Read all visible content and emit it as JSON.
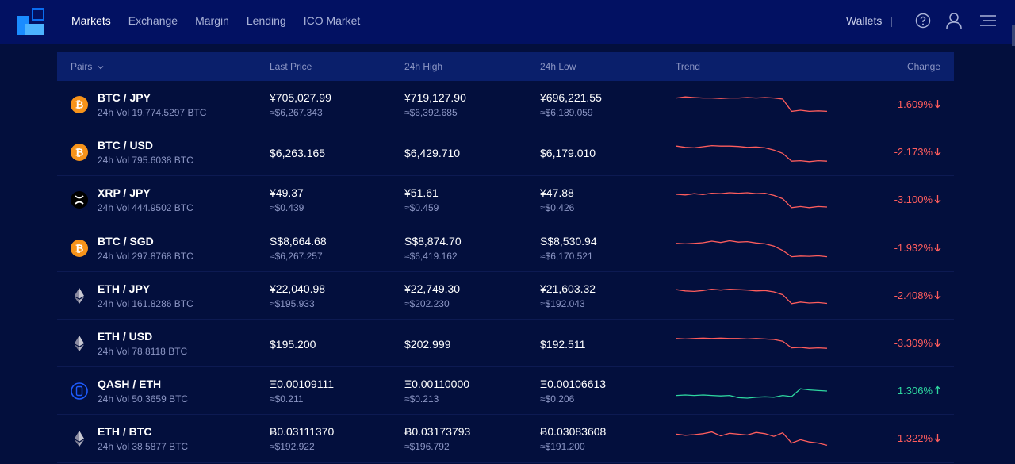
{
  "nav": {
    "items": [
      "Markets",
      "Exchange",
      "Margin",
      "Lending",
      "ICO Market"
    ],
    "wallets": "Wallets",
    "separator": "|"
  },
  "table": {
    "headers": {
      "pairs": "Pairs",
      "last_price": "Last Price",
      "high": "24h High",
      "low": "24h Low",
      "trend": "Trend",
      "change": "Change"
    },
    "rows": [
      {
        "icon": "bitcoin-icon",
        "pair": "BTC / JPY",
        "vol": "24h Vol 19,774.5297 BTC",
        "last": "¥705,027.99",
        "last_sub": "≈$6,267.343",
        "high": "¥719,127.90",
        "high_sub": "≈$6,392.685",
        "low": "¥696,221.55",
        "low_sub": "≈$6,189.059",
        "change": "-1.609%",
        "direction": "down",
        "trend": [
          0.8,
          0.85,
          0.82,
          0.8,
          0.8,
          0.78,
          0.8,
          0.8,
          0.82,
          0.8,
          0.82,
          0.8,
          0.75,
          0.2,
          0.25,
          0.2,
          0.22,
          0.2
        ]
      },
      {
        "icon": "bitcoin-icon",
        "pair": "BTC / USD",
        "vol": "24h Vol 795.6038 BTC",
        "last": "$6,263.165",
        "last_sub": "",
        "high": "$6,429.710",
        "high_sub": "",
        "low": "$6,179.010",
        "low_sub": "",
        "change": "-2.173%",
        "direction": "down",
        "trend": [
          0.78,
          0.72,
          0.7,
          0.75,
          0.8,
          0.78,
          0.78,
          0.76,
          0.72,
          0.74,
          0.7,
          0.6,
          0.45,
          0.1,
          0.12,
          0.08,
          0.12,
          0.1
        ]
      },
      {
        "icon": "xrp-icon",
        "pair": "XRP / JPY",
        "vol": "24h Vol 444.9502 BTC",
        "last": "¥49.37",
        "last_sub": "≈$0.439",
        "high": "¥51.61",
        "high_sub": "≈$0.459",
        "low": "¥47.88",
        "low_sub": "≈$0.426",
        "change": "-3.100%",
        "direction": "down",
        "trend": [
          0.75,
          0.72,
          0.78,
          0.74,
          0.8,
          0.78,
          0.82,
          0.8,
          0.82,
          0.78,
          0.8,
          0.7,
          0.55,
          0.15,
          0.2,
          0.15,
          0.2,
          0.18
        ]
      },
      {
        "icon": "bitcoin-icon",
        "pair": "BTC / SGD",
        "vol": "24h Vol 297.8768 BTC",
        "last": "S$8,664.68",
        "last_sub": "≈$6,267.257",
        "high": "S$8,874.70",
        "high_sub": "≈$6,419.162",
        "low": "S$8,530.94",
        "low_sub": "≈$6,170.521",
        "change": "-1.932%",
        "direction": "down",
        "trend": [
          0.72,
          0.7,
          0.72,
          0.75,
          0.82,
          0.76,
          0.84,
          0.78,
          0.8,
          0.74,
          0.7,
          0.6,
          0.4,
          0.12,
          0.15,
          0.14,
          0.16,
          0.12
        ]
      },
      {
        "icon": "ethereum-icon",
        "pair": "ETH / JPY",
        "vol": "24h Vol 161.8286 BTC",
        "last": "¥22,040.98",
        "last_sub": "≈$195.933",
        "high": "¥22,749.30",
        "high_sub": "≈$202.230",
        "low": "¥21,603.32",
        "low_sub": "≈$192.043",
        "change": "-2.408%",
        "direction": "down",
        "trend": [
          0.78,
          0.72,
          0.7,
          0.74,
          0.8,
          0.76,
          0.8,
          0.78,
          0.76,
          0.72,
          0.74,
          0.68,
          0.55,
          0.15,
          0.22,
          0.18,
          0.2,
          0.16
        ]
      },
      {
        "icon": "ethereum-icon",
        "pair": "ETH / USD",
        "vol": "24h Vol 78.8118 BTC",
        "last": "$195.200",
        "last_sub": "",
        "high": "$202.999",
        "high_sub": "",
        "low": "$192.511",
        "low_sub": "",
        "change": "-3.309%",
        "direction": "down",
        "trend": [
          0.72,
          0.7,
          0.72,
          0.74,
          0.72,
          0.74,
          0.72,
          0.72,
          0.7,
          0.72,
          0.7,
          0.68,
          0.6,
          0.3,
          0.32,
          0.28,
          0.3,
          0.28
        ]
      },
      {
        "icon": "qash-icon",
        "pair": "QASH / ETH",
        "vol": "24h Vol 50.3659 BTC",
        "last": "Ξ0.00109111",
        "last_sub": "≈$0.211",
        "high": "Ξ0.00110000",
        "high_sub": "≈$0.213",
        "low": "Ξ0.00106613",
        "low_sub": "≈$0.206",
        "change": "1.306%",
        "direction": "up",
        "trend": [
          0.3,
          0.32,
          0.3,
          0.32,
          0.3,
          0.28,
          0.3,
          0.2,
          0.18,
          0.22,
          0.24,
          0.22,
          0.3,
          0.25,
          0.6,
          0.55,
          0.52,
          0.5
        ]
      },
      {
        "icon": "ethereum-icon",
        "pair": "ETH / BTC",
        "vol": "24h Vol 38.5877 BTC",
        "last": "Ƀ0.03111370",
        "last_sub": "≈$192.922",
        "high": "Ƀ0.03173793",
        "high_sub": "≈$196.792",
        "low": "Ƀ0.03083608",
        "low_sub": "≈$191.200",
        "change": "-1.322%",
        "direction": "down",
        "trend": [
          0.7,
          0.65,
          0.68,
          0.72,
          0.8,
          0.62,
          0.74,
          0.7,
          0.66,
          0.78,
          0.72,
          0.6,
          0.76,
          0.3,
          0.45,
          0.35,
          0.3,
          0.2
        ]
      }
    ]
  },
  "colors": {
    "down": "#ff5d5d",
    "up": "#2ed8a0"
  }
}
